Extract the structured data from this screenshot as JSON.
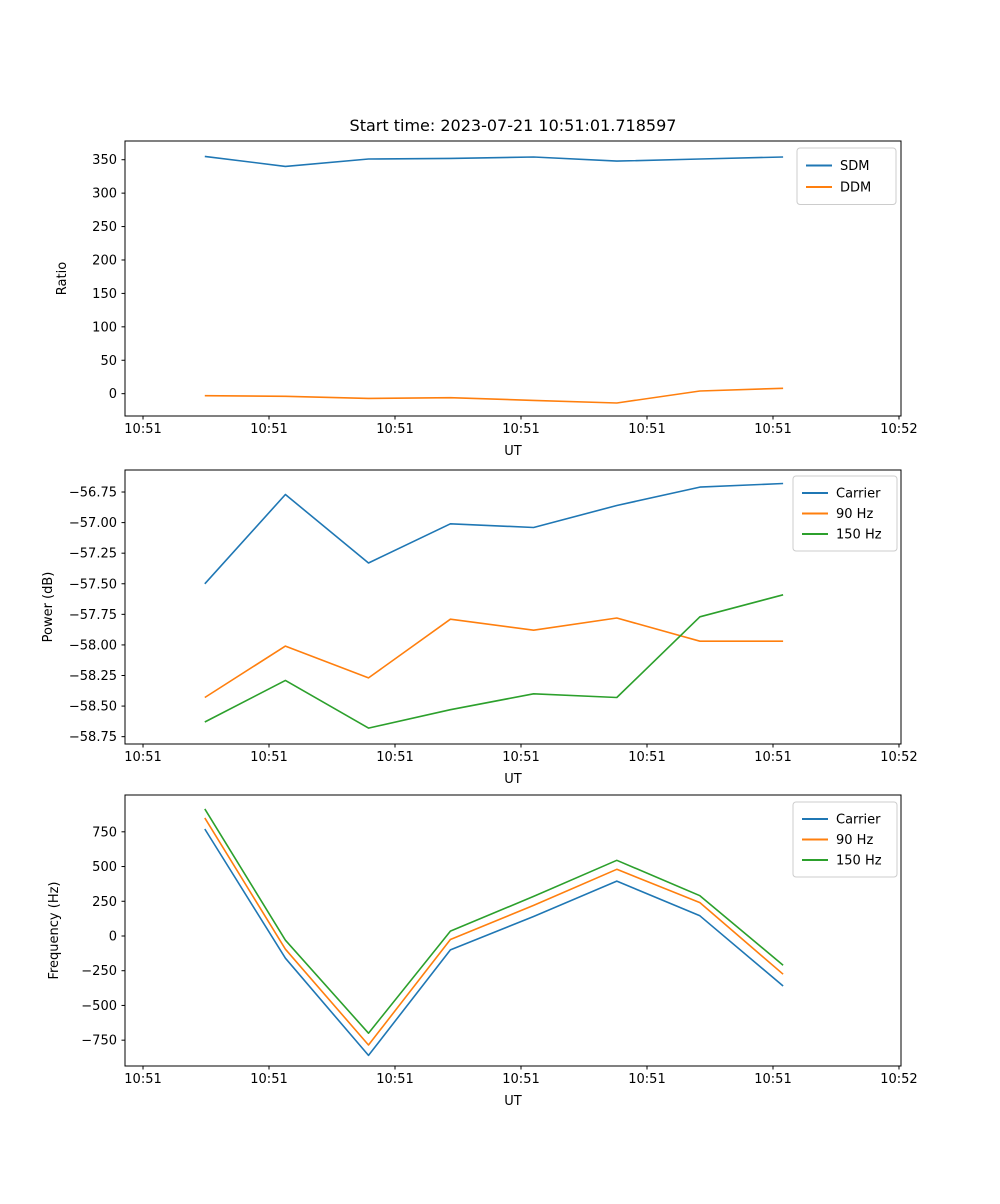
{
  "figure": {
    "background": "#ffffff",
    "title": "Start time: 2023-07-21 10:51:01.718597"
  },
  "colors": {
    "series_blue": "#1f77b4",
    "series_orange": "#ff7f0e",
    "series_green": "#2ca02c",
    "legend_border": "#cccccc",
    "axis": "#000000"
  },
  "chart_data": [
    {
      "type": "line",
      "title": "Start time: 2023-07-21 10:51:01.718597",
      "xlabel": "UT",
      "ylabel": "Ratio",
      "grid": false,
      "x_seconds": [
        4.9,
        11.3,
        17.9,
        24.4,
        31.0,
        37.6,
        44.2,
        50.8
      ],
      "series": [
        {
          "name": "SDM",
          "color": "#1f77b4",
          "values": [
            355,
            340,
            351,
            352,
            354,
            348,
            351,
            354
          ]
        },
        {
          "name": "DDM",
          "color": "#ff7f0e",
          "values": [
            -3,
            -4,
            -7,
            -6,
            -10,
            -14,
            4,
            8
          ]
        }
      ],
      "xlim": [
        -1.43,
        60.16
      ],
      "ylim": [
        -33.4,
        378
      ],
      "xticks": {
        "values": [
          0,
          10,
          20,
          30,
          40,
          50,
          60
        ],
        "labels": [
          "10:51",
          "10:51",
          "10:51",
          "10:51",
          "10:51",
          "10:51",
          "10:52"
        ]
      },
      "yticks": {
        "values": [
          0,
          50,
          100,
          150,
          200,
          250,
          300,
          350
        ],
        "labels": [
          "0",
          "50",
          "100",
          "150",
          "200",
          "250",
          "300",
          "350"
        ]
      },
      "legend": {
        "position": "upper-right",
        "entries": [
          "SDM",
          "DDM"
        ]
      }
    },
    {
      "type": "line",
      "title": "",
      "xlabel": "UT",
      "ylabel": "Power (dB)",
      "grid": false,
      "x_seconds": [
        4.9,
        11.3,
        17.9,
        24.4,
        31.0,
        37.6,
        44.2,
        50.8
      ],
      "series": [
        {
          "name": "Carrier",
          "color": "#1f77b4",
          "values": [
            -57.5,
            -56.77,
            -57.33,
            -57.01,
            -57.04,
            -56.86,
            -56.71,
            -56.68
          ]
        },
        {
          "name": "90 Hz",
          "color": "#ff7f0e",
          "values": [
            -58.43,
            -58.01,
            -58.27,
            -57.79,
            -57.88,
            -57.78,
            -57.97,
            -57.97
          ]
        },
        {
          "name": "150 Hz",
          "color": "#2ca02c",
          "values": [
            -58.63,
            -58.29,
            -58.68,
            -58.53,
            -58.4,
            -58.43,
            -57.77,
            -57.59
          ]
        }
      ],
      "xlim": [
        -1.43,
        60.16
      ],
      "ylim": [
        -58.81,
        -56.57
      ],
      "xticks": {
        "values": [
          0,
          10,
          20,
          30,
          40,
          50,
          60
        ],
        "labels": [
          "10:51",
          "10:51",
          "10:51",
          "10:51",
          "10:51",
          "10:51",
          "10:52"
        ]
      },
      "yticks": {
        "values": [
          -58.75,
          -58.5,
          -58.25,
          -58.0,
          -57.75,
          -57.5,
          -57.25,
          -57.0,
          -56.75
        ],
        "labels": [
          "−58.75",
          "−58.50",
          "−58.25",
          "−58.00",
          "−57.75",
          "−57.50",
          "−57.25",
          "−57.00",
          "−56.75"
        ]
      },
      "legend": {
        "position": "upper-right",
        "entries": [
          "Carrier",
          "90 Hz",
          "150 Hz"
        ]
      }
    },
    {
      "type": "line",
      "title": "",
      "xlabel": "UT",
      "ylabel": "Frequency (Hz)",
      "grid": false,
      "x_seconds": [
        4.9,
        11.3,
        17.9,
        24.4,
        31.0,
        37.6,
        44.2,
        50.8
      ],
      "series": [
        {
          "name": "Carrier",
          "color": "#1f77b4",
          "values": [
            770,
            -160,
            -860,
            -100,
            140,
            395,
            145,
            -360
          ]
        },
        {
          "name": "90 Hz",
          "color": "#ff7f0e",
          "values": [
            850,
            -95,
            -785,
            -25,
            220,
            480,
            240,
            -275
          ]
        },
        {
          "name": "150 Hz",
          "color": "#2ca02c",
          "values": [
            915,
            -30,
            -700,
            35,
            285,
            545,
            290,
            -210
          ]
        }
      ],
      "xlim": [
        -1.43,
        60.16
      ],
      "ylim": [
        -936,
        1015
      ],
      "xticks": {
        "values": [
          0,
          10,
          20,
          30,
          40,
          50,
          60
        ],
        "labels": [
          "10:51",
          "10:51",
          "10:51",
          "10:51",
          "10:51",
          "10:51",
          "10:52"
        ]
      },
      "yticks": {
        "values": [
          -750,
          -500,
          -250,
          0,
          250,
          500,
          750
        ],
        "labels": [
          "−750",
          "−500",
          "−250",
          "0",
          "250",
          "500",
          "750"
        ]
      },
      "legend": {
        "position": "upper-right",
        "entries": [
          "Carrier",
          "90 Hz",
          "150 Hz"
        ]
      }
    }
  ]
}
